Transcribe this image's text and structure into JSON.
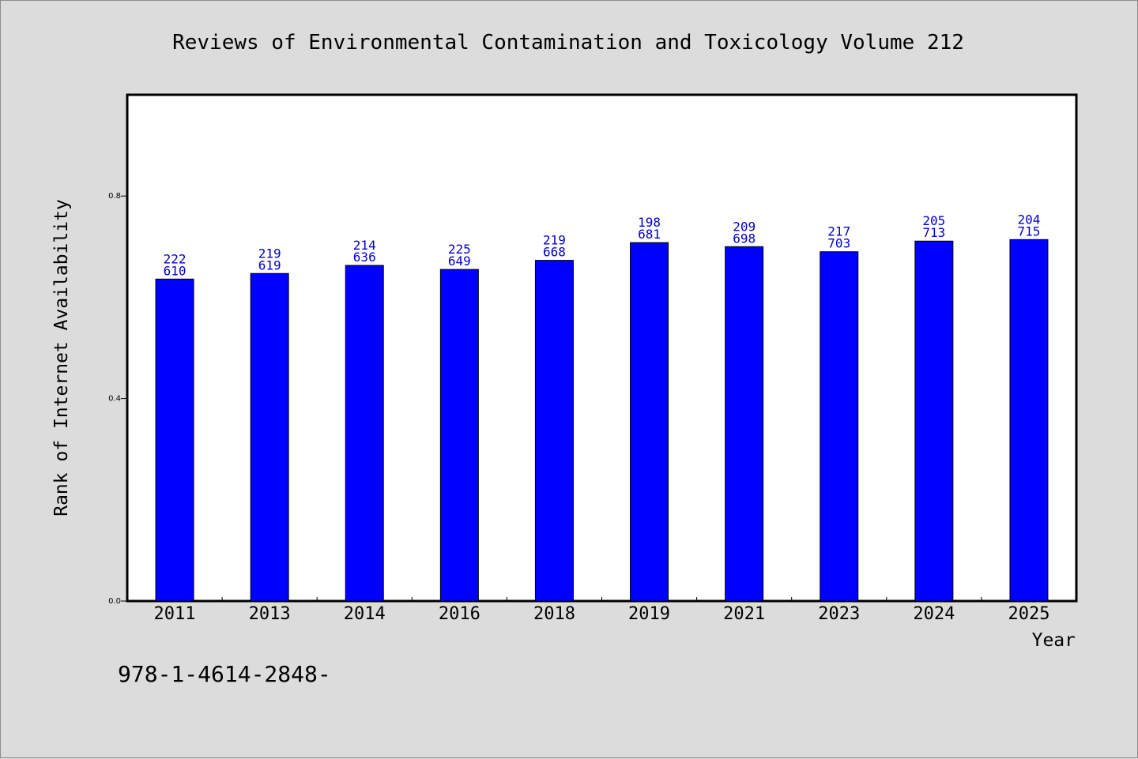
{
  "chart_data": {
    "type": "bar",
    "title": "Reviews of Environmental Contamination and Toxicology Volume 212",
    "xlabel": "Year",
    "ylabel": "Rank of Internet Availability",
    "categories": [
      "2011",
      "2013",
      "2014",
      "2016",
      "2018",
      "2019",
      "2021",
      "2023",
      "2024",
      "2025"
    ],
    "series": [
      {
        "values": [
          0.636,
          0.647,
          0.663,
          0.655,
          0.673,
          0.708,
          0.7,
          0.69,
          0.711,
          0.714
        ],
        "color": "#0000ff",
        "labels_top": [
          "222",
          "219",
          "214",
          "225",
          "219",
          "198",
          "209",
          "217",
          "205",
          "204"
        ],
        "labels_bottom": [
          "610",
          "619",
          "636",
          "649",
          "668",
          "681",
          "698",
          "703",
          "713",
          "715"
        ]
      }
    ],
    "ylim": [
      0,
      1.0
    ],
    "yticks": [
      0.0,
      0.4,
      0.8
    ],
    "ytick_labels": [
      "0.0",
      "0.4",
      "0.8"
    ],
    "grid": false,
    "legend": "none"
  },
  "footnote": "978-1-4614-2848-",
  "colors": {
    "background": "#dcdcdc",
    "plot_area": "#ffffff",
    "bar": "#0000ff",
    "data_label": "#0000cc"
  }
}
